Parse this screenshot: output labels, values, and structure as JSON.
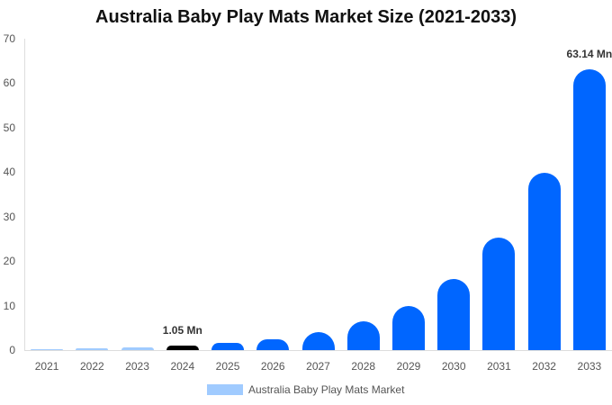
{
  "chart_data": {
    "type": "bar",
    "title": "Australia Baby Play Mats Market Size (2021-2033)",
    "xlabel": "",
    "ylabel": "",
    "ylim": [
      0,
      70
    ],
    "yticks": [
      0,
      10,
      20,
      30,
      40,
      50,
      60,
      70
    ],
    "categories": [
      "2021",
      "2022",
      "2023",
      "2024",
      "2025",
      "2026",
      "2027",
      "2028",
      "2029",
      "2030",
      "2031",
      "2032",
      "2033"
    ],
    "series": [
      {
        "name": "Australia Baby Play Mats Market",
        "values": [
          0.3,
          0.45,
          0.65,
          1.05,
          1.6,
          2.4,
          4.0,
          6.4,
          10.0,
          15.9,
          25.2,
          39.9,
          63.14
        ]
      }
    ],
    "annotations": [
      {
        "category": "2024",
        "text": "1.05 Mn"
      },
      {
        "category": "2033",
        "text": "63.14 Mn"
      }
    ],
    "bar_colors": [
      "#a0cbff",
      "#a0cbff",
      "#a0cbff",
      "#000000",
      "#0066ff",
      "#0066ff",
      "#0066ff",
      "#0066ff",
      "#0066ff",
      "#0066ff",
      "#0066ff",
      "#0066ff",
      "#0066ff"
    ],
    "grid": false,
    "legend_position": "bottom"
  },
  "title": "Australia Baby Play Mats Market Size (2021-2033)",
  "legend": {
    "label": "Australia Baby Play Mats Market",
    "color": "#a0cbff"
  }
}
